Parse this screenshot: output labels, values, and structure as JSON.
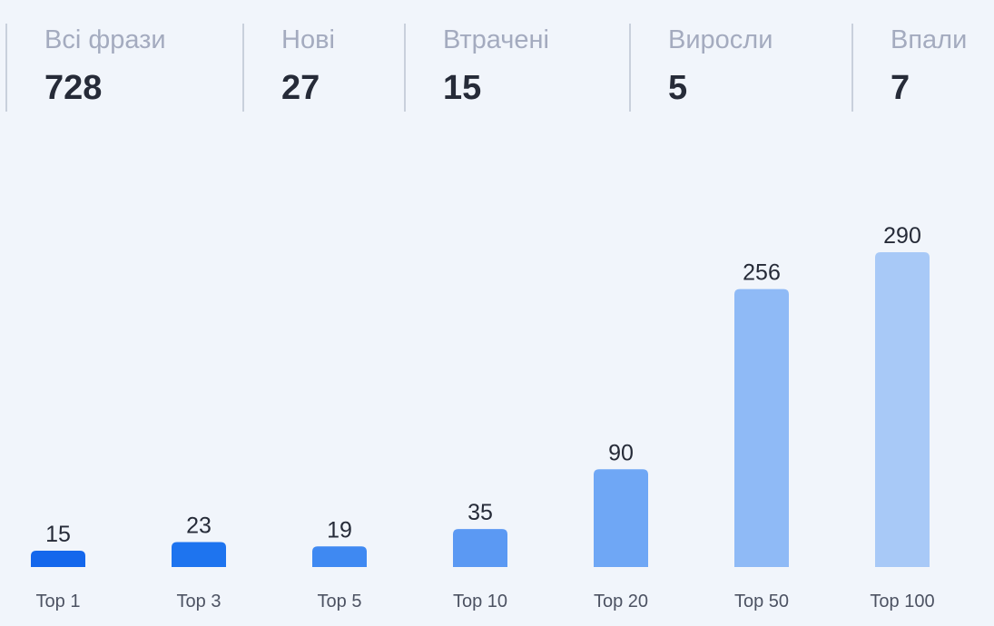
{
  "stats": [
    {
      "label": "Всі фрази",
      "value": "728"
    },
    {
      "label": "Нові",
      "value": "27"
    },
    {
      "label": "Втрачені",
      "value": "15"
    },
    {
      "label": "Виросли",
      "value": "5"
    },
    {
      "label": "Впали",
      "value": "7"
    }
  ],
  "chart_data": {
    "type": "bar",
    "categories": [
      "Top 1",
      "Top 3",
      "Top 5",
      "Top 10",
      "Top 20",
      "Top 50",
      "Top 100"
    ],
    "values": [
      15,
      23,
      19,
      35,
      90,
      256,
      290
    ],
    "ylim": [
      0,
      290
    ],
    "grid": false,
    "colors": [
      "#1467ec",
      "#1e74ef",
      "#3f89f2",
      "#5b99f3",
      "#6fa7f5",
      "#8fbaf6",
      "#a8c9f7"
    ],
    "value_label_color": "#262b38",
    "category_label_color": "#4c5262"
  }
}
